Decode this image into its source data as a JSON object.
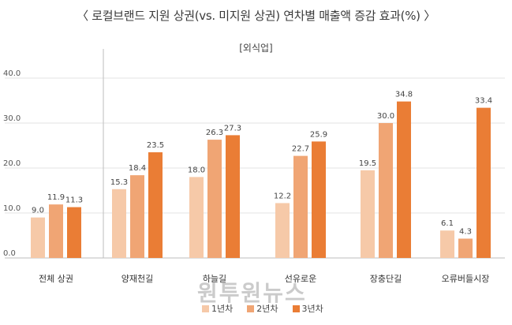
{
  "title": "〈 로컬브랜드 지원 상권(vs. 미지원 상권) 연차별 매출액 증감 효과(%) 〉",
  "subtitle": "[외식업]",
  "watermark": "원투원뉴스",
  "colors": {
    "y1": "#f6c9a8",
    "y2": "#f0a574",
    "y3": "#ea7d35",
    "grid": "#e3e3e3",
    "axis": "#bdbdbd"
  },
  "chart_data": {
    "type": "bar",
    "categories": [
      "전체 상권",
      "양재천길",
      "하늘길",
      "선유로운",
      "장충단길",
      "오류버들시장"
    ],
    "series": [
      {
        "name": "1년차",
        "values": [
          9.0,
          15.3,
          18.0,
          12.2,
          19.5,
          6.1
        ]
      },
      {
        "name": "2년차",
        "values": [
          11.9,
          18.4,
          26.3,
          22.7,
          30.0,
          4.3
        ]
      },
      {
        "name": "3년차",
        "values": [
          11.3,
          23.5,
          27.3,
          25.9,
          34.8,
          33.4
        ]
      }
    ],
    "yticks": [
      "0.0",
      "10.0",
      "20.0",
      "30.0",
      "40.0"
    ],
    "ylim": [
      0,
      40
    ],
    "grid": true,
    "legend_position": "bottom"
  }
}
